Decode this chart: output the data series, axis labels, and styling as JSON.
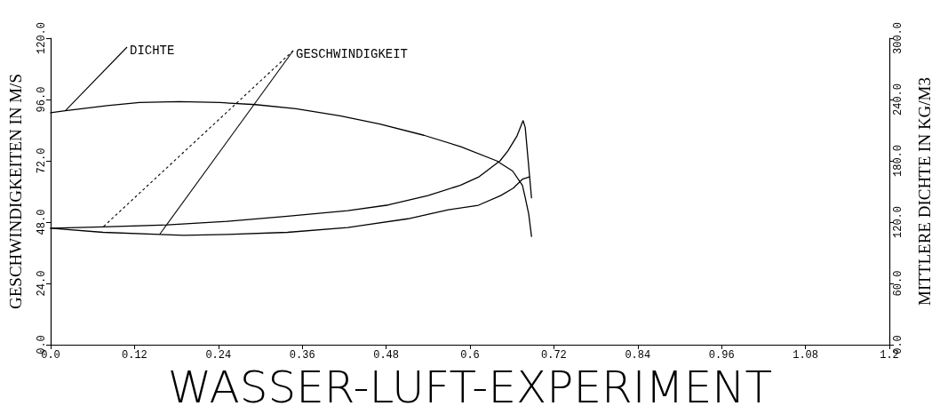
{
  "chart_data": {
    "type": "line",
    "title": "WASSER-LUFT-EXPERIMENT",
    "ylabel": "GESCHWINDIGKEITEN IN M/S",
    "y2label": "MITTLERE DICHTE IN KG/M3",
    "xlim": [
      0,
      1.2
    ],
    "xticks": [
      {
        "value": 0,
        "label": "0.0"
      },
      0.12,
      0.24,
      0.36,
      0.48,
      0.6,
      0.72,
      0.84,
      0.96,
      1.08,
      1.2
    ],
    "ylim": [
      0,
      120
    ],
    "yticks": [
      {
        "value": 0,
        "label": "0.0"
      },
      {
        "value": 24,
        "label": "24.0"
      },
      {
        "value": 48,
        "label": "48.0"
      },
      {
        "value": 72,
        "label": "72.0"
      },
      {
        "value": 96,
        "label": "96.0"
      },
      {
        "value": 120,
        "label": "120.0"
      }
    ],
    "y2lim": [
      0,
      300
    ],
    "y2ticks": [
      {
        "value": 0,
        "label": "0.0"
      },
      {
        "value": 60,
        "label": "60.0"
      },
      {
        "value": 120,
        "label": "120.0"
      },
      {
        "value": 180,
        "label": "180.0"
      },
      {
        "value": 240,
        "label": "240.0"
      },
      {
        "value": 300,
        "label": "300.0"
      }
    ],
    "grid": false,
    "legend": false,
    "marker": "none",
    "line_style": "solid",
    "series": [
      {
        "name": "DICHTE",
        "axis": "y2",
        "color": "#000000",
        "x": [
          0,
          0.021,
          0.081,
          0.127,
          0.184,
          0.242,
          0.293,
          0.351,
          0.414,
          0.471,
          0.534,
          0.586,
          0.638,
          0.661,
          0.675,
          0.679,
          0.684,
          0.688
        ],
        "values": [
          227,
          229,
          234,
          237,
          238,
          237,
          235,
          231,
          224,
          216,
          205,
          194,
          180,
          170,
          156,
          144,
          128,
          106
        ]
      },
      {
        "name": "GESCHWINDIGKEIT",
        "color": "#000000",
        "x": [
          0,
          0.075,
          0.167,
          0.253,
          0.339,
          0.425,
          0.483,
          0.54,
          0.586,
          0.612,
          0.643,
          0.654,
          0.667,
          0.673,
          0.676,
          0.679,
          0.688
        ],
        "values": [
          45.6,
          46.1,
          46.9,
          48.3,
          50.3,
          52.5,
          54.7,
          58.4,
          62.4,
          65.6,
          72.0,
          75.8,
          81.6,
          85.7,
          87.7,
          85.1,
          57.5
        ]
      },
      {
        "color": "#000000",
        "x": [
          0,
          0.075,
          0.156,
          0.19,
          0.253,
          0.339,
          0.425,
          0.511,
          0.569,
          0.612,
          0.644,
          0.662,
          0.675,
          0.685
        ],
        "values": [
          45.6,
          44.0,
          43.2,
          42.8,
          43.2,
          44.0,
          45.9,
          49.3,
          52.8,
          54.6,
          58.4,
          61.3,
          64.8,
          65.7
        ]
      }
    ]
  }
}
